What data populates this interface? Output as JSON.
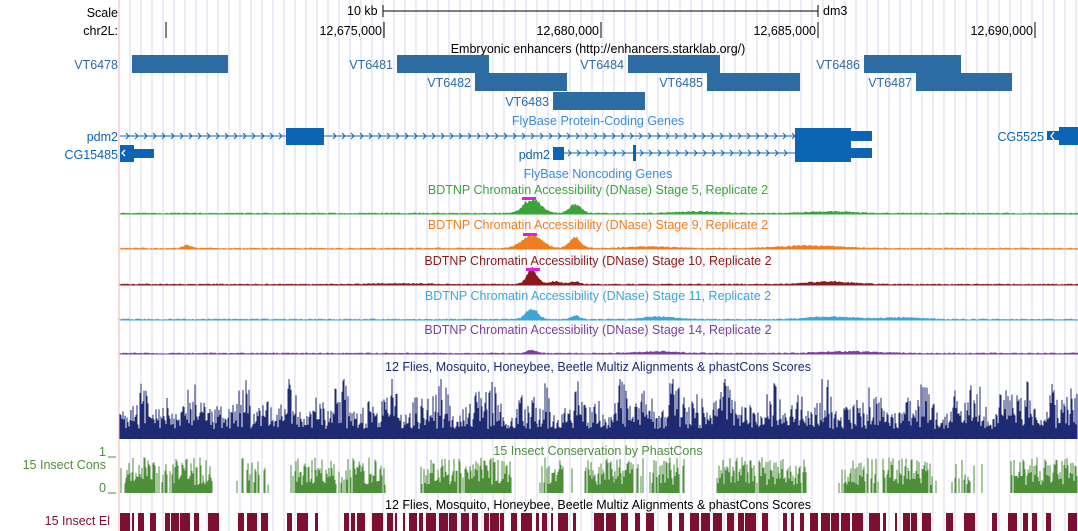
{
  "colors": {
    "enhancer": "#2d6ca2",
    "gene": "#0c64b4",
    "noncoding": "#3b8bd6",
    "stage5": "#3aa33a",
    "stage9": "#f07d1e",
    "stage10": "#8b1a1a",
    "stage11": "#3ca6d6",
    "stage14": "#7b3fa0",
    "multiz": "#1e2a72",
    "phastcons": "#4e8f3a",
    "elements": "#7d1030",
    "peak": "#e020e0"
  },
  "ruler": {
    "scale_label": "Scale",
    "chrom_label": "chr2L:",
    "scale_bar_label": "10 kb",
    "assembly": "dm3",
    "positions": [
      "12,675,000",
      "12,680,000",
      "12,685,000",
      "12,690,000"
    ]
  },
  "tracks": {
    "enhancers": {
      "title": "Embryonic enhancers (http://enhancers.starklab.org/)",
      "items": [
        {
          "name": "VT6478"
        },
        {
          "name": "VT6481"
        },
        {
          "name": "VT6482"
        },
        {
          "name": "VT6483"
        },
        {
          "name": "VT6484"
        },
        {
          "name": "VT6485"
        },
        {
          "name": "VT6486"
        },
        {
          "name": "VT6487"
        }
      ]
    },
    "coding_genes": {
      "title": "FlyBase Protein-Coding Genes",
      "genes": [
        {
          "name": "pdm2"
        },
        {
          "name": "CG15485"
        },
        {
          "name": "CG5525"
        }
      ]
    },
    "noncoding_genes": {
      "title": "FlyBase Noncoding Genes",
      "genes": [
        {
          "name": "pdm2"
        }
      ]
    },
    "dnase": [
      {
        "title": "BDTNP Chromatin Accessibility (DNase) Stage 5, Replicate 2",
        "color_key": "stage5"
      },
      {
        "title": "BDTNP Chromatin Accessibility (DNase) Stage 9, Replicate 2",
        "color_key": "stage9"
      },
      {
        "title": "BDTNP Chromatin Accessibility (DNase) Stage 10, Replicate 2",
        "color_key": "stage10"
      },
      {
        "title": "BDTNP Chromatin Accessibility (DNase) Stage 11, Replicate 2",
        "color_key": "stage11"
      },
      {
        "title": "BDTNP Chromatin Accessibility (DNase) Stage 14, Replicate 2",
        "color_key": "stage14"
      }
    ],
    "multiz": {
      "title": "12 Flies, Mosquito, Honeybee, Beetle Multiz Alignments & phastCons Scores"
    },
    "phastcons": {
      "title": "15 Insect Conservation by PhastCons",
      "side_label": "15 Insect Cons",
      "ymax_label": "1",
      "ymin_label": "0"
    },
    "elements": {
      "title": "12 Flies, Mosquito, Honeybee, Beetle Multiz Alignments & phastCons Scores",
      "side_label": "15 Insect El"
    }
  }
}
